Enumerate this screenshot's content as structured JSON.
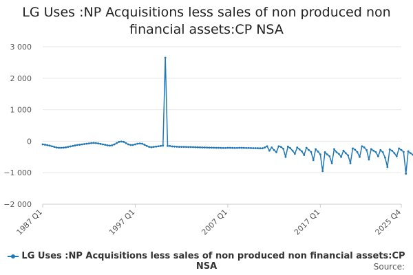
{
  "title_line1": "LG Uses :NP Acquisitions less sales of non produced non",
  "title_line2": "financial assets:CP NSA",
  "legend_label": "LG Uses :NP Acquisitions less sales of non produced non financial assets:CP NSA",
  "source_label": "Source:",
  "colors": {
    "series": "#1f77b4",
    "grid": "#e6e6e6",
    "axis": "#cccccc"
  },
  "chart_data": {
    "type": "line",
    "title": "LG Uses :NP Acquisitions less sales of non produced non financial assets:CP NSA",
    "xlabel": "",
    "ylabel": "",
    "x_ticks": [
      "1987 Q1",
      "1997 Q1",
      "2007 Q1",
      "2017 Q1",
      "2025 Q4"
    ],
    "y_ticks": [
      3000,
      2000,
      1000,
      0,
      -1000,
      -2000
    ],
    "y_tick_labels": [
      "3 000",
      "2 000",
      "1 000",
      "0",
      "−1 000",
      "−2 000"
    ],
    "ylim": [
      -2000,
      3000
    ],
    "x_range": [
      "1987 Q1",
      "2025 Q4"
    ],
    "grid": true,
    "legend": "bottom",
    "series": [
      {
        "name": "LG Uses :NP Acquisitions less sales of non produced non financial assets:CP NSA",
        "start": "1987 Q1",
        "frequency": "quarterly",
        "values": [
          -100,
          -110,
          -125,
          -140,
          -160,
          -180,
          -200,
          -210,
          -210,
          -205,
          -195,
          -180,
          -165,
          -150,
          -135,
          -120,
          -110,
          -100,
          -90,
          -80,
          -70,
          -60,
          -55,
          -60,
          -70,
          -85,
          -100,
          -115,
          -130,
          -140,
          -130,
          -100,
          -60,
          -20,
          -10,
          -20,
          -60,
          -100,
          -120,
          -120,
          -100,
          -80,
          -70,
          -80,
          -110,
          -150,
          -180,
          -190,
          -180,
          -170,
          -160,
          -150,
          -140,
          2650,
          -150,
          -150,
          -165,
          -170,
          -175,
          -180,
          -180,
          -180,
          -182,
          -185,
          -185,
          -188,
          -190,
          -192,
          -195,
          -198,
          -200,
          -202,
          -205,
          -205,
          -208,
          -210,
          -210,
          -212,
          -215,
          -215,
          -210,
          -210,
          -212,
          -215,
          -215,
          -210,
          -210,
          -212,
          -215,
          -215,
          -218,
          -220,
          -220,
          -222,
          -225,
          -225,
          -200,
          -160,
          -300,
          -200,
          -280,
          -350,
          -160,
          -180,
          -240,
          -500,
          -170,
          -220,
          -300,
          -400,
          -200,
          -260,
          -320,
          -440,
          -210,
          -280,
          -340,
          -600,
          -250,
          -330,
          -420,
          -950,
          -350,
          -420,
          -480,
          -700,
          -250,
          -350,
          -400,
          -500,
          -300,
          -380,
          -450,
          -700,
          -230,
          -270,
          -350,
          -500,
          -160,
          -200,
          -280,
          -580,
          -250,
          -300,
          -350,
          -480,
          -280,
          -350,
          -520,
          -820,
          -260,
          -300,
          -380,
          -480,
          -230,
          -280,
          -340,
          -1030,
          -320,
          -380,
          -430
        ]
      }
    ]
  }
}
